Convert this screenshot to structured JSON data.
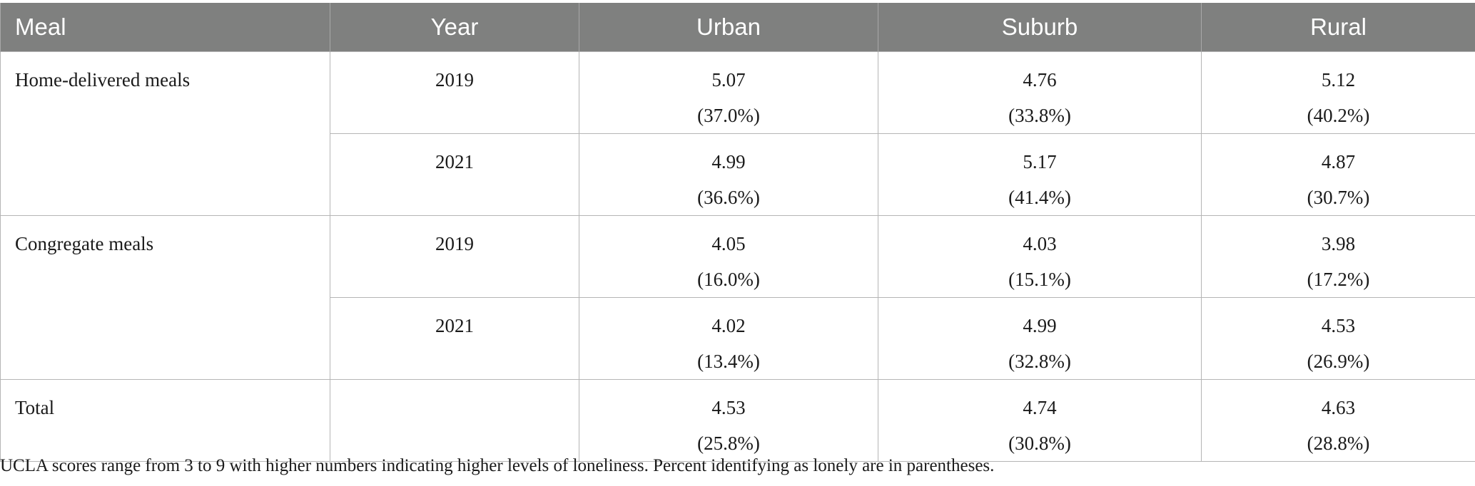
{
  "table": {
    "headers": [
      "Meal",
      "Year",
      "Urban",
      "Suburb",
      "Rural"
    ],
    "rows": [
      {
        "meal": "Home-delivered meals",
        "year": "2019",
        "urban": "5.07",
        "urban_pct": "(37.0%)",
        "suburb": "4.76",
        "suburb_pct": "(33.8%)",
        "rural": "5.12",
        "rural_pct": "(40.2%)"
      },
      {
        "meal": "",
        "year": "2021",
        "urban": "4.99",
        "urban_pct": "(36.6%)",
        "suburb": "5.17",
        "suburb_pct": "(41.4%)",
        "rural": "4.87",
        "rural_pct": "(30.7%)"
      },
      {
        "meal": "Congregate meals",
        "year": "2019",
        "urban": "4.05",
        "urban_pct": "(16.0%)",
        "suburb": "4.03",
        "suburb_pct": "(15.1%)",
        "rural": "3.98",
        "rural_pct": "(17.2%)"
      },
      {
        "meal": "",
        "year": "2021",
        "urban": "4.02",
        "urban_pct": "(13.4%)",
        "suburb": "4.99",
        "suburb_pct": "(32.8%)",
        "rural": "4.53",
        "rural_pct": "(26.9%)"
      },
      {
        "meal": "Total",
        "year": "",
        "urban": "4.53",
        "urban_pct": "(25.8%)",
        "suburb": "4.74",
        "suburb_pct": "(30.8%)",
        "rural": "4.63",
        "rural_pct": "(28.8%)"
      }
    ]
  },
  "footnote": "UCLA scores range from 3 to 9 with higher numbers indicating higher levels of loneliness. Percent identifying as lonely are in parentheses.",
  "colors": {
    "header_bg": "#7f807f",
    "header_text": "#ffffff",
    "border": "#b5b5b5"
  }
}
